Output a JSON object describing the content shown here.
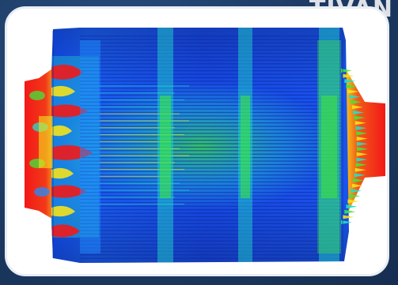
{
  "watermark": {
    "text": "TIVAN"
  },
  "simulation": {
    "subject": "flow-velocity-contour",
    "colors": {
      "low": "#0c36e0",
      "mid_low": "#1f8dff",
      "mid": "#22e0c8",
      "mid_high": "#3ee83a",
      "high": "#f4e21c",
      "max": "#f21818"
    },
    "channel_band_count": 3
  }
}
